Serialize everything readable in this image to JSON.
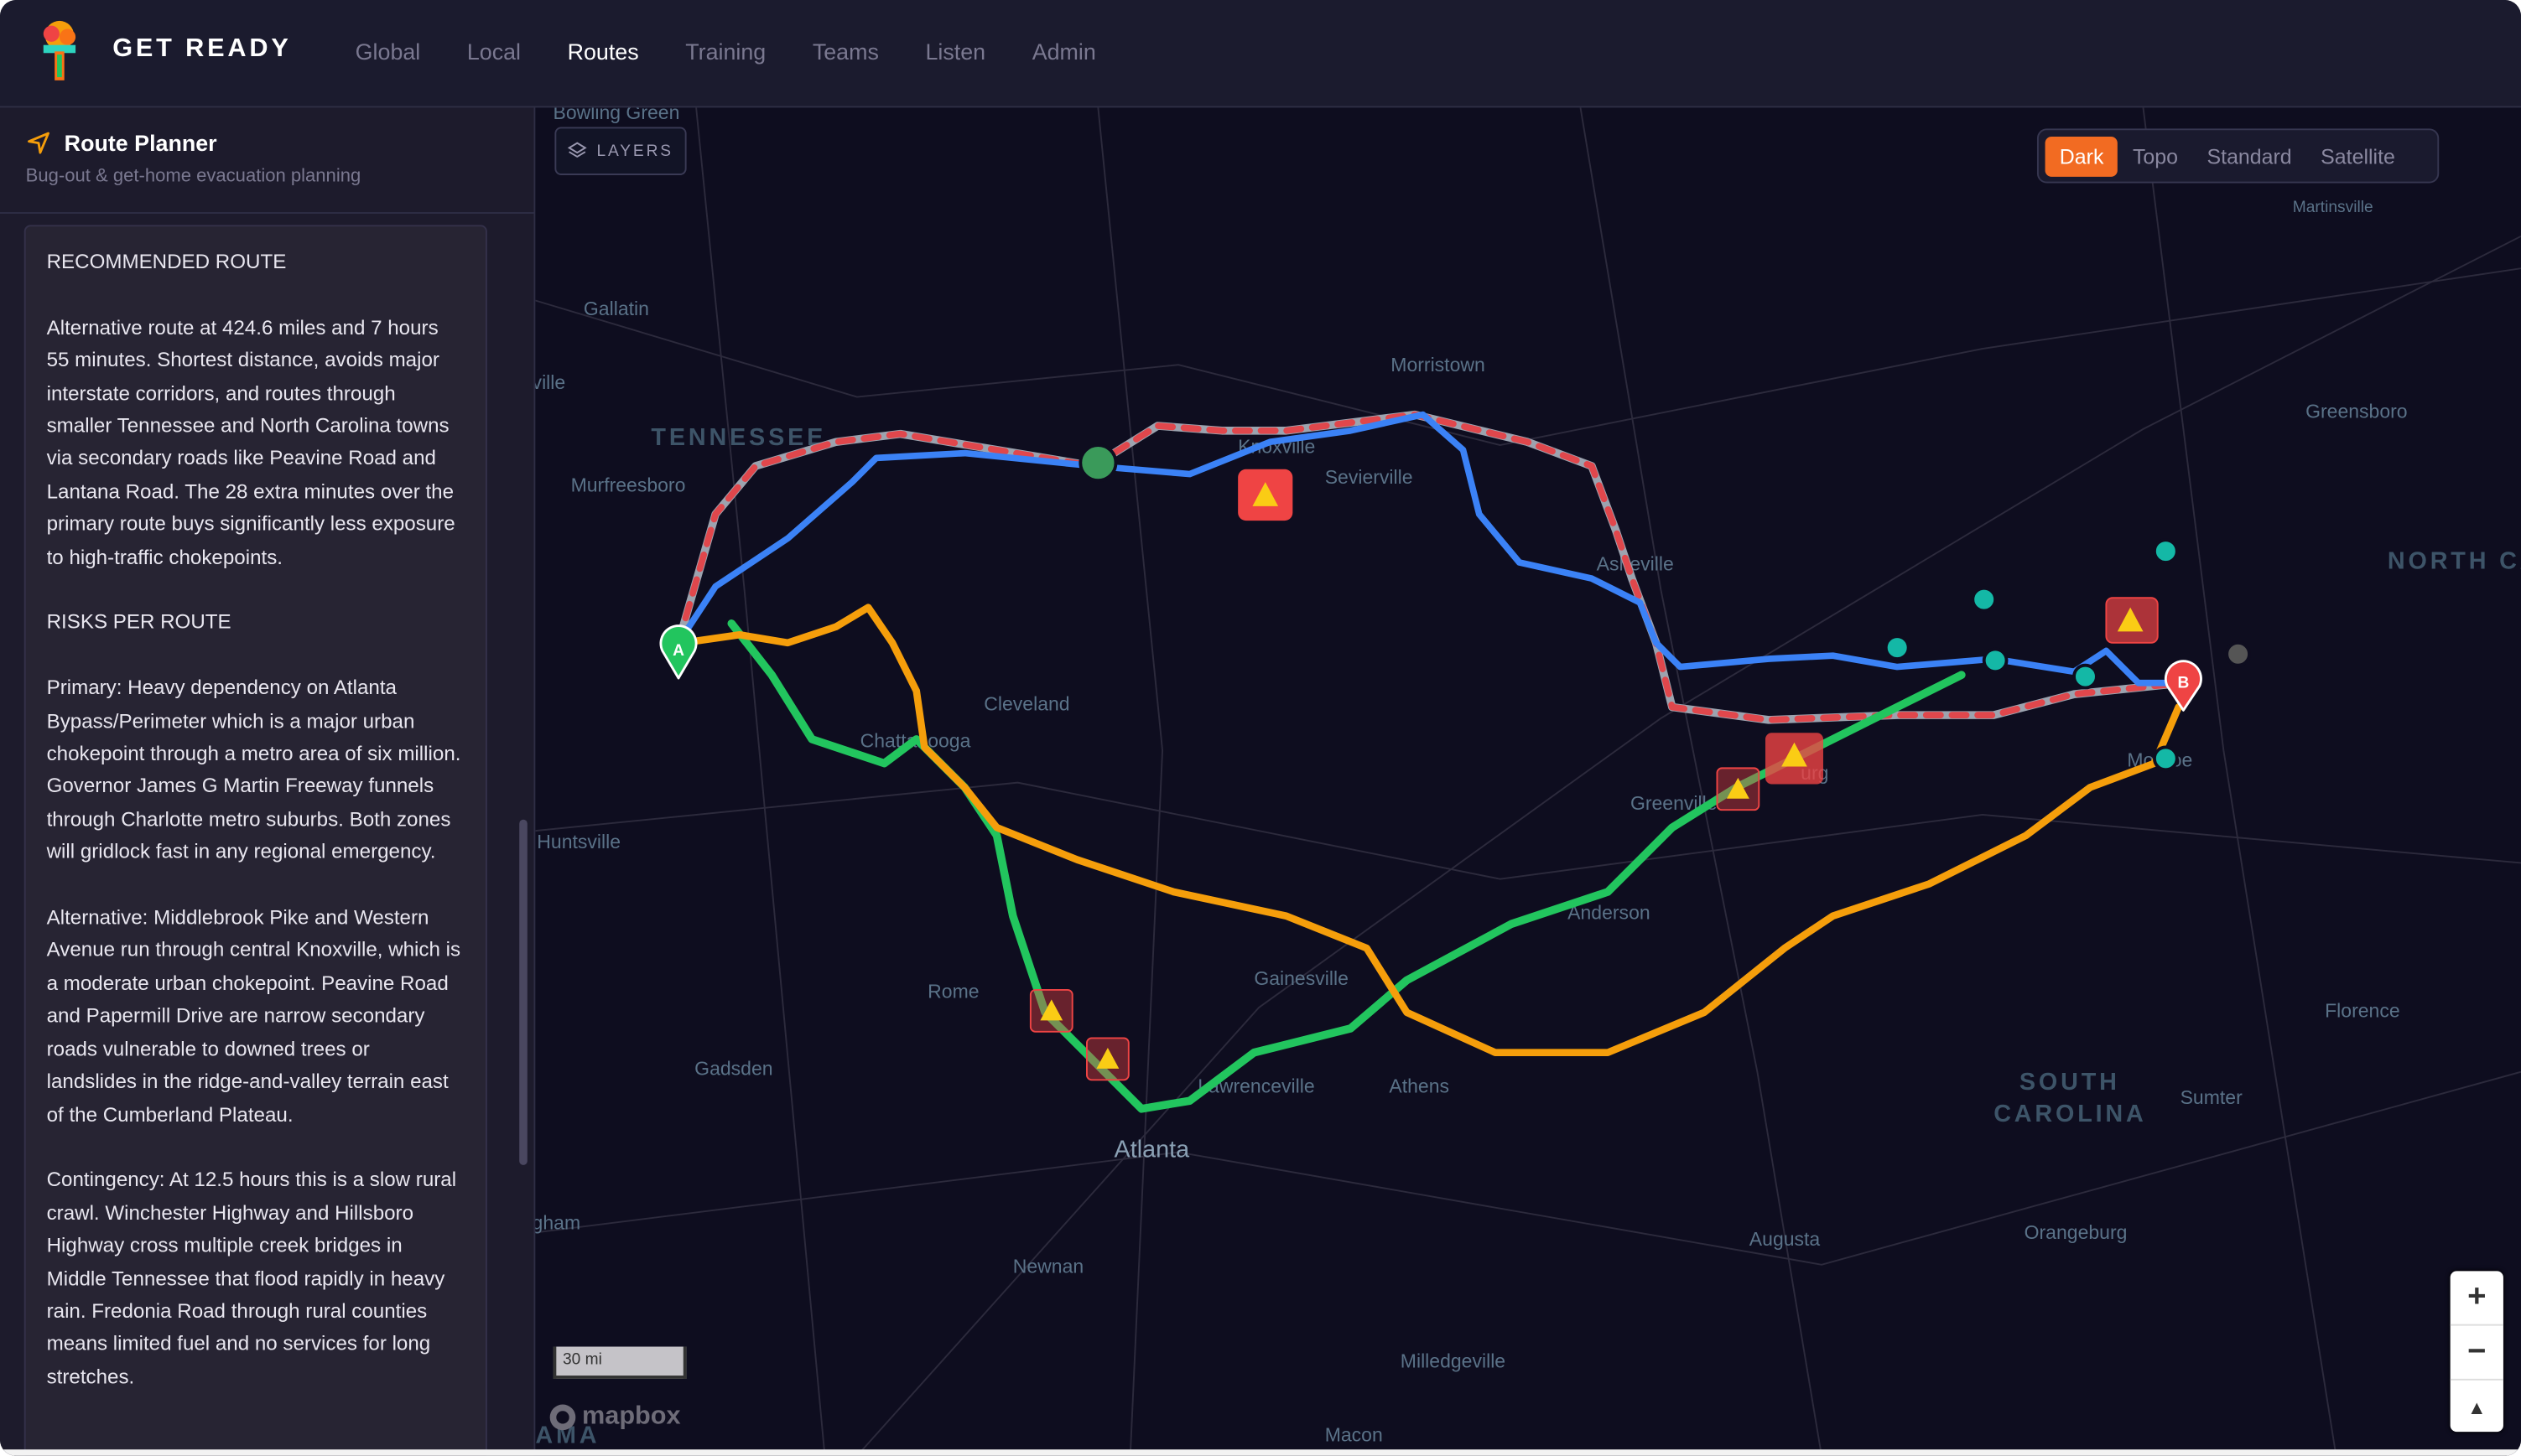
{
  "app": {
    "brand": "GET READY",
    "nav": [
      "Global",
      "Local",
      "Routes",
      "Training",
      "Teams",
      "Listen",
      "Admin"
    ],
    "active_nav": "Routes"
  },
  "sidebar": {
    "title": "Route Planner",
    "subtitle": "Bug-out & get-home evacuation planning",
    "paragraphs": [
      "RECOMMENDED ROUTE",
      "Alternative route at 424.6 miles and 7 hours 55 minutes. Shortest distance, avoids major interstate corridors, and routes through smaller Tennessee and North Carolina towns via secondary roads like Peavine Road and Lantana Road. The 28 extra minutes over the primary route buys significantly less exposure to high-traffic chokepoints.",
      "RISKS PER ROUTE",
      "Primary: Heavy dependency on Atlanta Bypass/Perimeter which is a major urban chokepoint through a metro area of six million. Governor James G Martin Freeway funnels through Charlotte metro suburbs. Both zones will gridlock fast in any regional emergency.",
      "Alternative: Middlebrook Pike and Western Avenue run through central Knoxville, which is a moderate urban chokepoint. Peavine Road and Papermill Drive are narrow secondary roads vulnerable to downed trees or landslides in the ridge-and-valley terrain east of the Cumberland Plateau.",
      "Contingency: At 12.5 hours this is a slow rural crawl. Winchester Highway and Hillsboro Highway cross multiple creek bridges in Middle Tennessee that flood rapidly in heavy rain. Fredonia Road through rural counties means limited fuel and no services for long stretches."
    ]
  },
  "map": {
    "layers_label": "LAYERS",
    "styles": [
      "Dark",
      "Topo",
      "Standard",
      "Satellite"
    ],
    "active_style": "Dark",
    "scale_label": "30 mi",
    "attribution": "mapbox",
    "marker_a": "A",
    "marker_b": "B",
    "zoom_in": "+",
    "zoom_out": "−",
    "compass": "▲",
    "route_colors": {
      "blue": "#3b82f6",
      "red_dashed": "#e0474c",
      "green": "#22c55e",
      "orange": "#f59e0b"
    },
    "labels": {
      "bowling_green": "Bowling Green",
      "gallatin": "Gallatin",
      "ville": "ville",
      "tennessee": "TENNESSEE",
      "murfreesboro": "Murfreesboro",
      "morristown": "Morristown",
      "knoxville": "Knoxville",
      "sevierville": "Sevierville",
      "asheville": "Asheville",
      "greensboro": "Greensboro",
      "martinsville": "Martinsville",
      "north_carolina": "NORTH CAROLIN",
      "cleveland": "Cleveland",
      "chattanooga": "Chattanooga",
      "huntsville": "Huntsville",
      "greenville": "Greenville",
      "spartanburg": "urg",
      "monroe": "Monroe",
      "anderson": "Anderson",
      "gainesville": "Gainesville",
      "rome": "Rome",
      "gadsden": "Gadsden",
      "florence": "Florence",
      "south_carolina_1": "SOUTH",
      "south_carolina_2": "CAROLINA",
      "sumter": "Sumter",
      "lawrenceville": "Lawrenceville",
      "athens": "Athens",
      "atlanta": "Atlanta",
      "birmingham": "gham",
      "augusta": "Augusta",
      "orangeburg": "Orangeburg",
      "newnan": "Newnan",
      "milledgeville": "Milledgeville",
      "macon": "Macon",
      "alabama": "AMA"
    }
  }
}
